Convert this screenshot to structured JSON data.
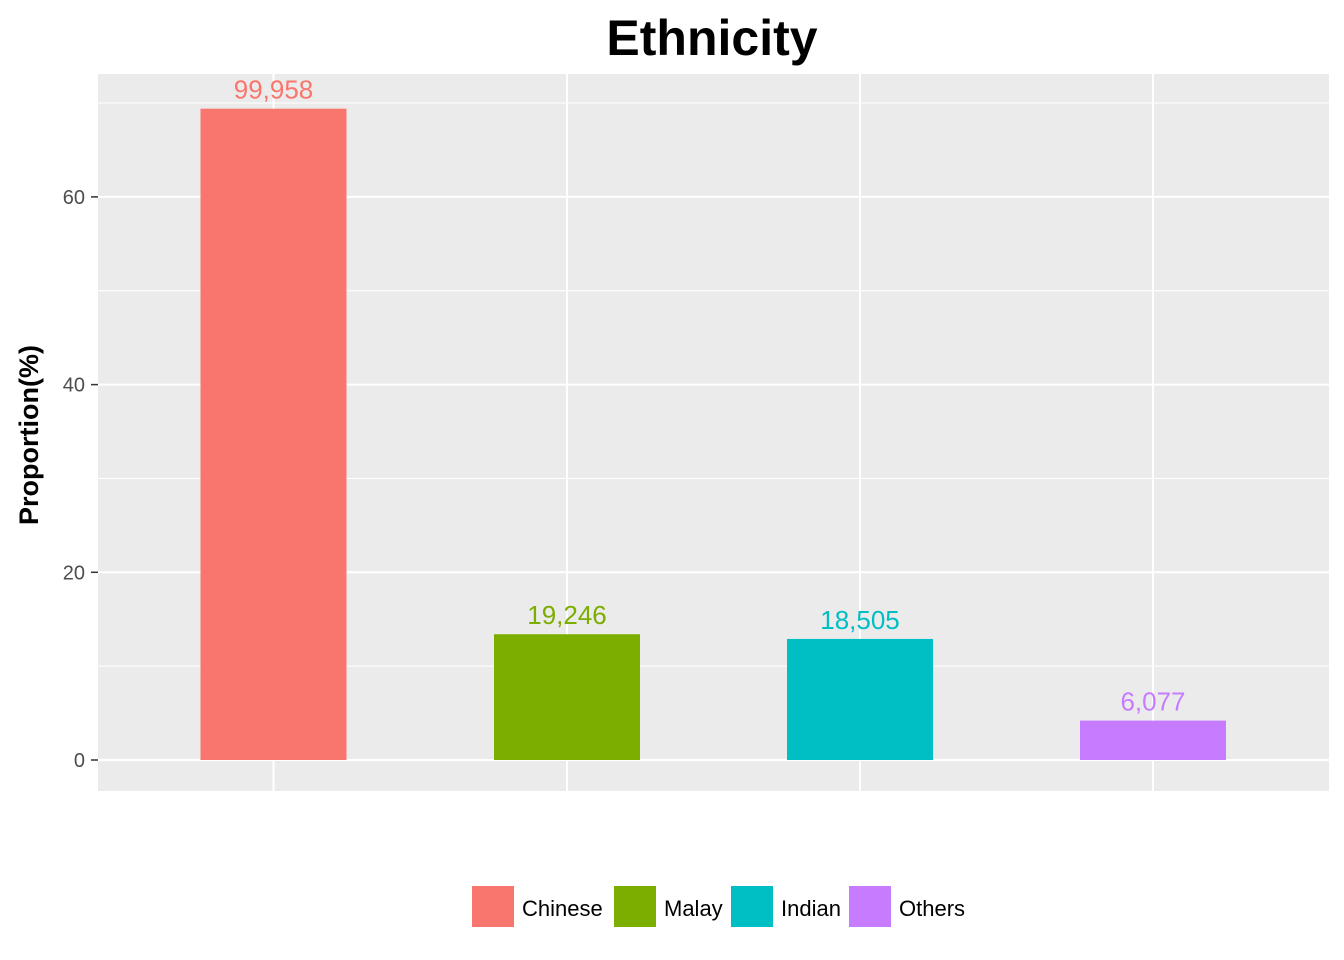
{
  "chart_data": {
    "type": "bar",
    "title": "Ethnicity",
    "xlabel": "",
    "ylabel": "Proportion(%)",
    "ylim": [
      0,
      70
    ],
    "y_ticks": [
      0,
      20,
      40,
      60
    ],
    "categories": [
      "Chinese",
      "Malay",
      "Indian",
      "Others"
    ],
    "values": [
      69.4,
      13.4,
      12.9,
      4.2
    ],
    "data_labels": [
      "99,958",
      "19,246",
      "18,505",
      "6,077"
    ],
    "colors": [
      "#F8766D",
      "#7CAE00",
      "#00BFC4",
      "#C77CFF"
    ],
    "grid": true,
    "legend_position": "bottom",
    "panel_background": "#EBEBEB",
    "grid_color": "#FFFFFF"
  }
}
